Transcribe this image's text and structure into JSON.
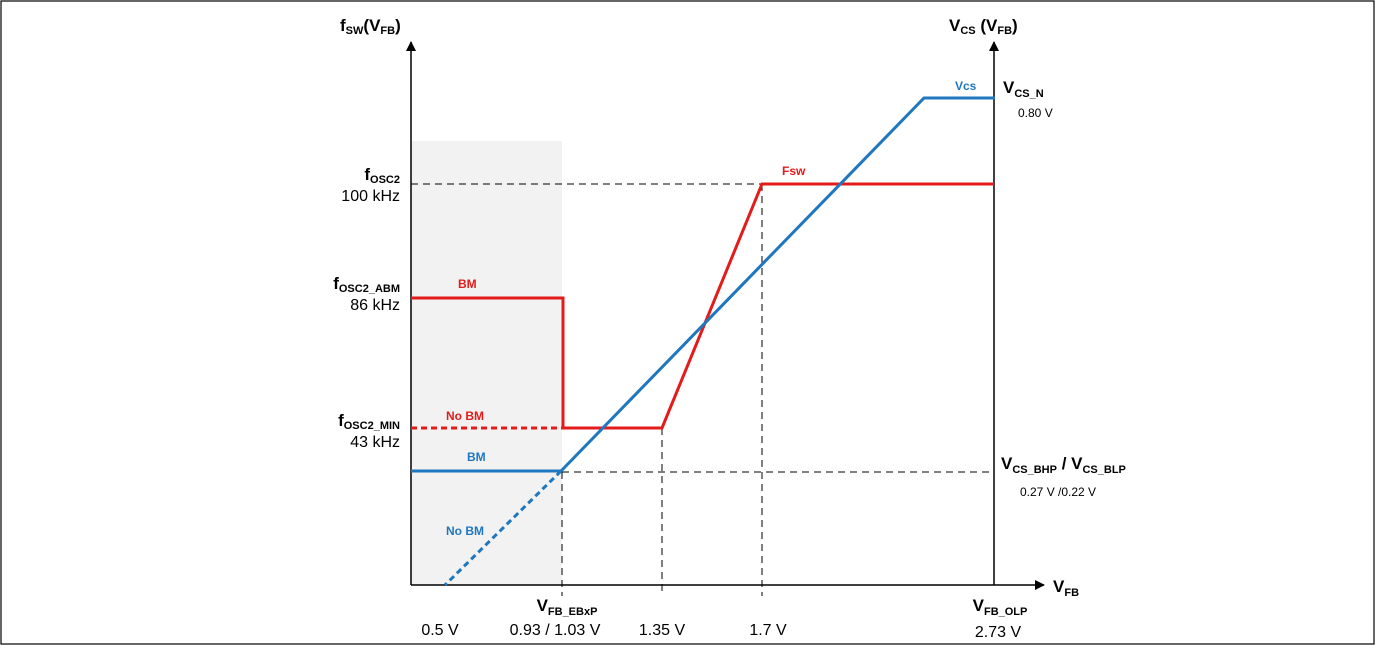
{
  "colors": {
    "fsw_red": "#e41b1b",
    "vcs_blue": "#1f77c0",
    "shade": "#f2f2f2",
    "axis": "#000000"
  },
  "axes": {
    "left_title": {
      "main": "f",
      "sub": "SW",
      "suffix": "(V",
      "suffix_sub": "FB",
      "close": ")"
    },
    "right_title": {
      "main": "V",
      "sub": "CS",
      "suffix": " (V",
      "suffix_sub": "FB",
      "close": ")"
    },
    "x_title": {
      "main": "V",
      "sub": "FB"
    }
  },
  "left_labels": {
    "fosc2": {
      "main": "f",
      "sub": "OSC2",
      "value": "100 kHz"
    },
    "fosc2_abm": {
      "main": "f",
      "sub": "OSC2_ABM",
      "value": "86 kHz"
    },
    "fosc2_min": {
      "main": "f",
      "sub": "OSC2_MIN",
      "value": "43 kHz"
    }
  },
  "right_labels": {
    "vcs_n": {
      "main": "V",
      "sub": "CS_N",
      "value": "0.80 V"
    },
    "vcs_bhp": {
      "main1": "V",
      "sub1": "CS_BHP",
      "sep": " / ",
      "main2": "V",
      "sub2": "CS_BLP",
      "value": "0.27 V /0.22 V"
    }
  },
  "x_labels": {
    "v05": "0.5 V",
    "vfb_ebxp": {
      "main": "V",
      "sub": "FB_EBxP",
      "value": "0.93 / 1.03 V"
    },
    "v135": "1.35 V",
    "v17": "1.7 V",
    "vfb_olp": {
      "main": "V",
      "sub": "FB_OLP",
      "value": "2.73 V"
    }
  },
  "curve_labels": {
    "fsw": "Fsw",
    "vcs": "Vcs",
    "bm_red": "BM",
    "nobm_red": "No BM",
    "bm_blue": "BM",
    "nobm_blue": "No BM"
  }
}
